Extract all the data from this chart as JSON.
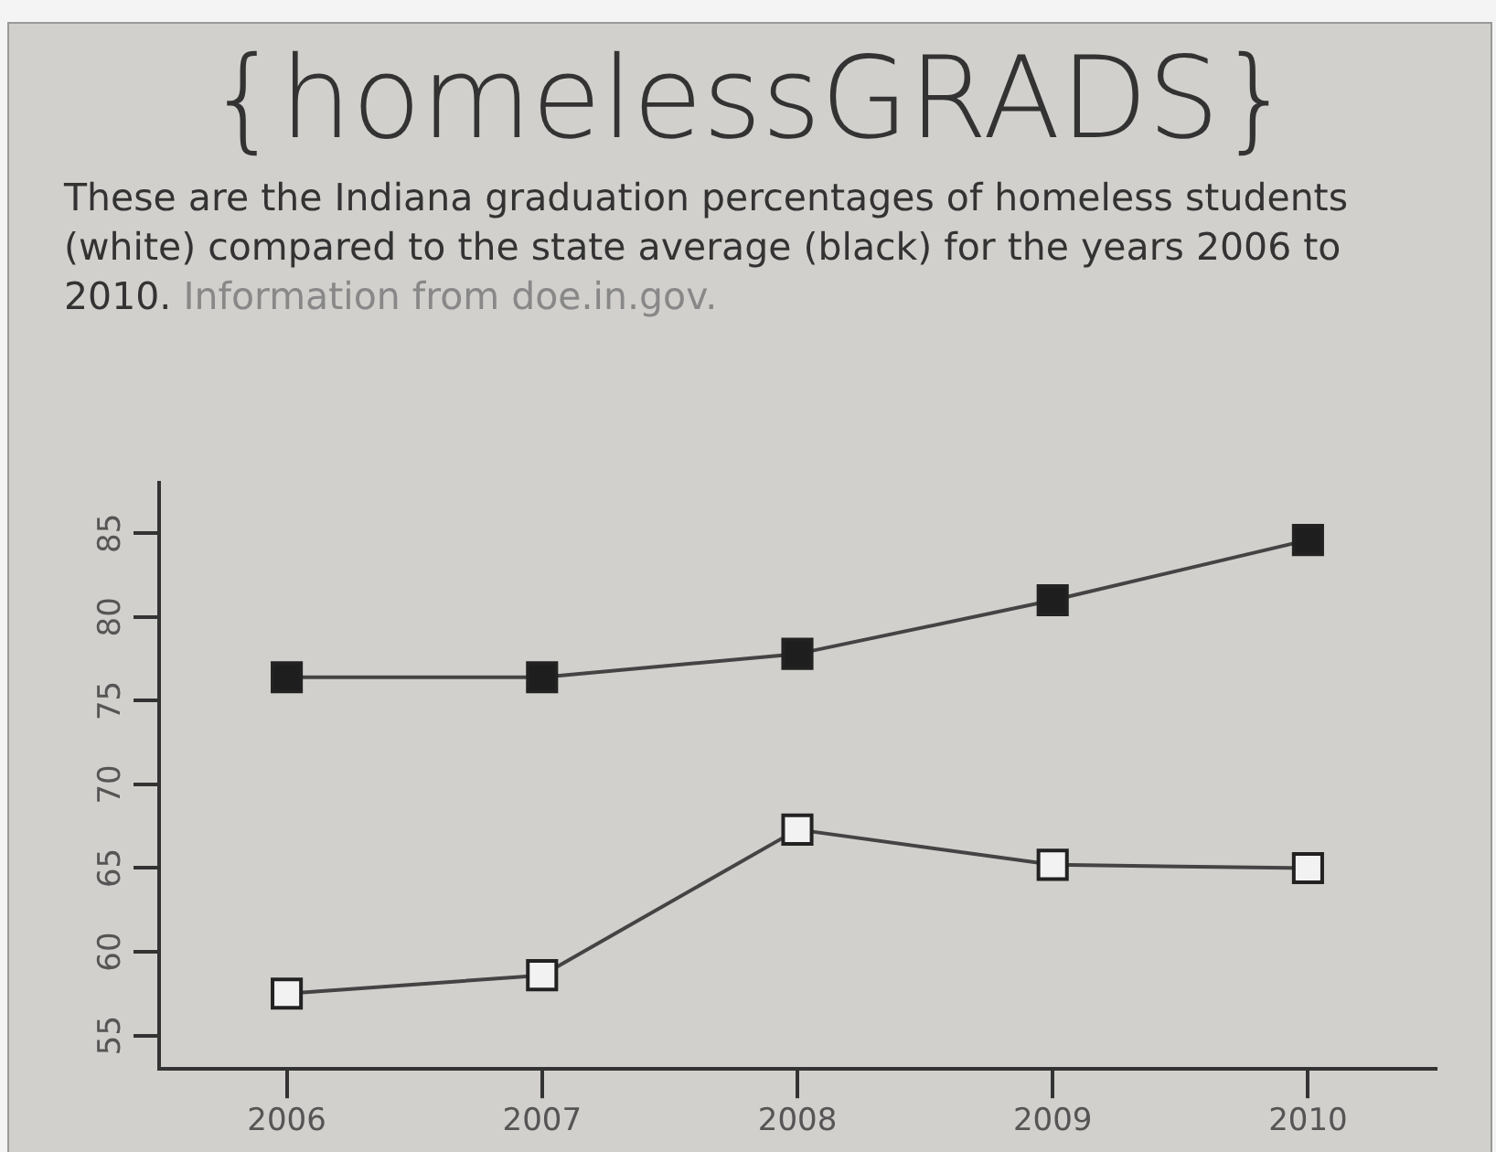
{
  "chart_data": {
    "type": "line",
    "title": "{homelessGRADS}",
    "subtitle": "These are the Indiana graduation percentages of homeless students (white) compared to the state average (black) for the years 2006 to 2010.",
    "annotations": [
      "Information from doe.in.gov."
    ],
    "categories": [
      "2006",
      "2007",
      "2008",
      "2009",
      "2010"
    ],
    "series": [
      {
        "color": "#1e1e1e",
        "values": [
          76.4,
          76.4,
          77.8,
          81.0,
          84.6
        ]
      },
      {
        "color": "#f2f2f2",
        "values": [
          57.5,
          58.6,
          67.3,
          65.2,
          65.0
        ]
      }
    ],
    "ylim": [
      53,
      88
    ],
    "yticks": [
      55,
      60,
      65,
      70,
      75,
      80,
      85
    ],
    "marker": "square",
    "grid": false,
    "legend": false
  }
}
